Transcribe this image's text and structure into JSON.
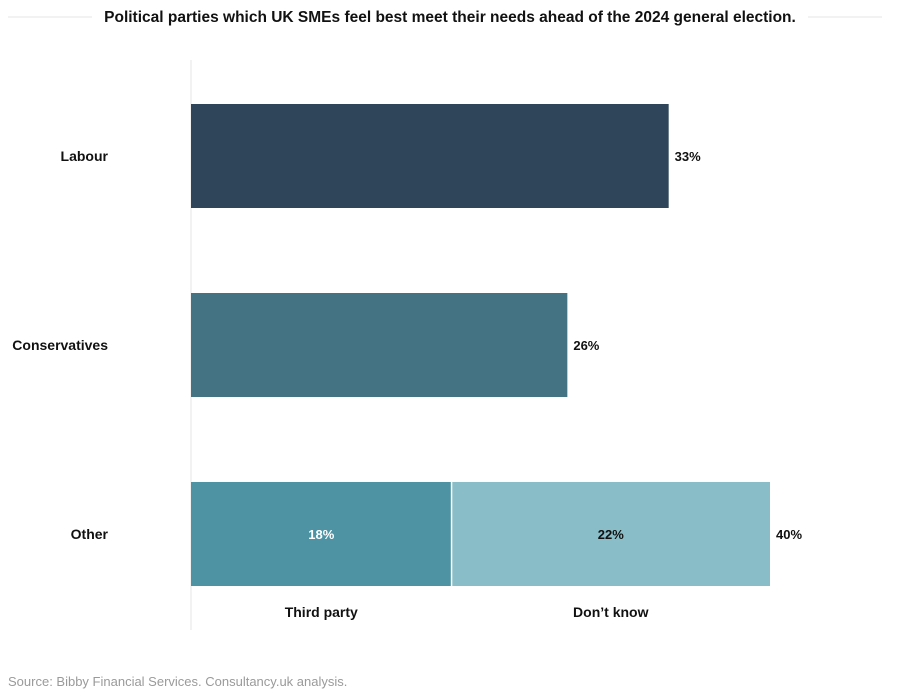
{
  "chart_data": {
    "type": "bar",
    "orientation": "horizontal",
    "title": "Political parties which UK SMEs feel best meet their needs ahead of the 2024 general election.",
    "categories": [
      "Labour",
      "Conservatives",
      "Other"
    ],
    "values": [
      33,
      26,
      40
    ],
    "value_labels": [
      "33%",
      "26%",
      "40%"
    ],
    "unit": "%",
    "xlim": [
      0,
      40
    ],
    "grid": false,
    "colors": [
      "#2f4559",
      "#447384",
      "#4d93a4"
    ],
    "breakdown": {
      "category": "Other",
      "segments": [
        {
          "name": "Third party",
          "value": 18,
          "label": "18%",
          "color": "#4d93a4",
          "label_color": "#ffffff"
        },
        {
          "name": "Don’t know",
          "value": 22,
          "label": "22%",
          "color": "#89bec8",
          "label_color": "#111111"
        }
      ]
    }
  },
  "source": "Source: Bibby Financial Services. Consultancy.uk analysis."
}
